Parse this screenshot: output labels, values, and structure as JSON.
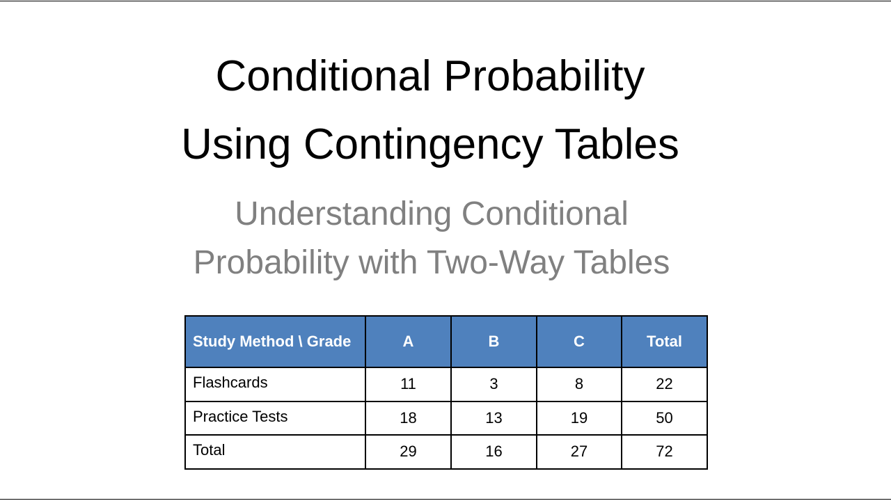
{
  "slide": {
    "title": [
      "Conditional Probability",
      "Using Contingency Tables"
    ],
    "subtitle": [
      "Understanding Conditional",
      "Probability with Two-Way Tables"
    ]
  },
  "table": {
    "header": [
      "Study Method \\ Grade",
      "A",
      "B",
      "C",
      "Total"
    ],
    "rows": [
      [
        "Flashcards",
        11,
        3,
        8,
        22
      ],
      [
        "Practice Tests",
        18,
        13,
        19,
        50
      ],
      [
        "Total",
        29,
        16,
        27,
        72
      ]
    ]
  }
}
